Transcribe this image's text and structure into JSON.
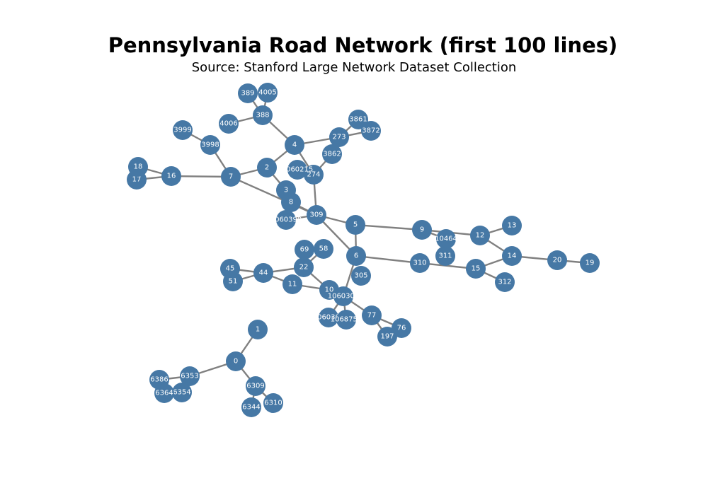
{
  "title": "Pennsylvania Road Network (first 100 lines)",
  "subtitle": "Source: Stanford Large Network Dataset Collection",
  "colors": {
    "node": "#4678a5",
    "edge": "#808080",
    "label": "#ffffff"
  },
  "chart_data": {
    "type": "network",
    "nodes": [
      "0",
      "1",
      "6309",
      "6353",
      "6344",
      "6310",
      "6354",
      "6364",
      "6386",
      "3",
      "2",
      "7",
      "8",
      "309",
      "4",
      "5",
      "6",
      "274",
      "273",
      "3862",
      "3861",
      "3872",
      "388",
      "389",
      "4005",
      "4006",
      "3999",
      "3998",
      "16",
      "17",
      "18",
      "1060215",
      "1060390",
      "9",
      "10464",
      "12",
      "13",
      "14",
      "20",
      "19",
      "310",
      "311",
      "15",
      "312",
      "305",
      "10",
      "1060300",
      "1060309",
      "1068754",
      "77",
      "76",
      "197",
      "11",
      "22",
      "44",
      "45",
      "51",
      "69",
      "58"
    ],
    "labels": {
      "1060215": "1060215",
      "1060390": "1060390",
      "1060300": "1060300",
      "1060309": "1060309",
      "1068754": "1068754"
    },
    "edges": [
      [
        "0",
        "1"
      ],
      [
        "0",
        "6309"
      ],
      [
        "0",
        "6353"
      ],
      [
        "6309",
        "6344"
      ],
      [
        "6309",
        "6310"
      ],
      [
        "6353",
        "6354"
      ],
      [
        "6353",
        "6386"
      ],
      [
        "6354",
        "6364"
      ],
      [
        "7",
        "16"
      ],
      [
        "16",
        "17"
      ],
      [
        "16",
        "18"
      ],
      [
        "7",
        "2"
      ],
      [
        "7",
        "3998"
      ],
      [
        "3998",
        "3999"
      ],
      [
        "7",
        "309"
      ],
      [
        "2",
        "3"
      ],
      [
        "2",
        "4"
      ],
      [
        "3",
        "8"
      ],
      [
        "8",
        "309"
      ],
      [
        "1060390",
        "309"
      ],
      [
        "4",
        "388"
      ],
      [
        "388",
        "389"
      ],
      [
        "388",
        "4005"
      ],
      [
        "388",
        "4006"
      ],
      [
        "4",
        "273"
      ],
      [
        "273",
        "3861"
      ],
      [
        "273",
        "3872"
      ],
      [
        "4",
        "274"
      ],
      [
        "274",
        "3862"
      ],
      [
        "274",
        "309"
      ],
      [
        "309",
        "5"
      ],
      [
        "309",
        "6"
      ],
      [
        "5",
        "6"
      ],
      [
        "5",
        "9"
      ],
      [
        "9",
        "10464"
      ],
      [
        "9",
        "12"
      ],
      [
        "12",
        "13"
      ],
      [
        "12",
        "14"
      ],
      [
        "14",
        "20"
      ],
      [
        "20",
        "19"
      ],
      [
        "14",
        "15"
      ],
      [
        "6",
        "310"
      ],
      [
        "310",
        "15"
      ],
      [
        "15",
        "312"
      ],
      [
        "6",
        "1060300"
      ],
      [
        "1060300",
        "10"
      ],
      [
        "1060300",
        "77"
      ],
      [
        "77",
        "76"
      ],
      [
        "77",
        "197"
      ],
      [
        "1060300",
        "1060309"
      ],
      [
        "1060300",
        "1068754"
      ],
      [
        "10",
        "22"
      ],
      [
        "10",
        "11"
      ],
      [
        "11",
        "44"
      ],
      [
        "22",
        "44"
      ],
      [
        "44",
        "45"
      ],
      [
        "44",
        "51"
      ],
      [
        "22",
        "69"
      ],
      [
        "22",
        "58"
      ]
    ]
  }
}
